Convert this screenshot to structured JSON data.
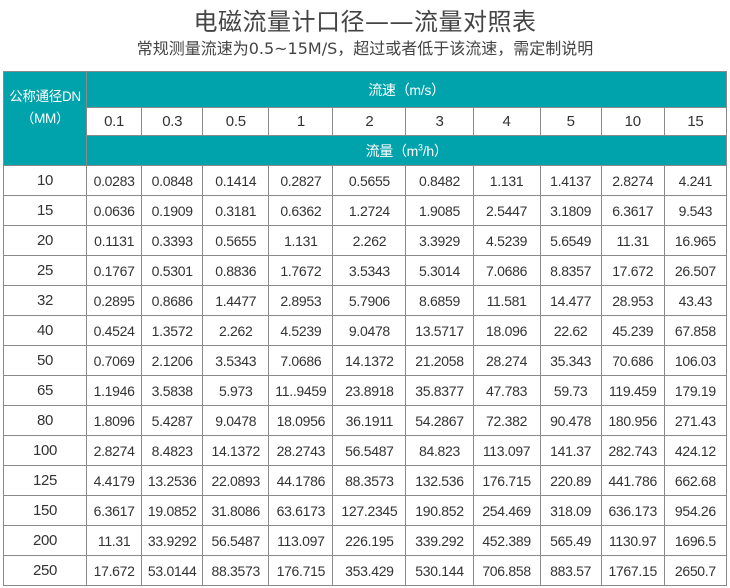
{
  "title": "电磁流量计口径——流量对照表",
  "subtitle": "常规测量流速为0.5~15M/S，超过或者低于该流速，需定制说明",
  "colors": {
    "header_bg": "#00a2ab",
    "header_text": "#ffffff",
    "border": "#8a8a8a"
  },
  "table": {
    "dn_header_line1": "公称通径DN",
    "dn_header_line2": "（MM）",
    "velocity_header": "流速（m/s）",
    "flow_header_prefix": "流量（m",
    "flow_header_sup": "3",
    "flow_header_suffix": "/h）",
    "velocities": [
      "0.1",
      "0.3",
      "0.5",
      "1",
      "2",
      "3",
      "4",
      "5",
      "10",
      "15"
    ],
    "rows": [
      {
        "dn": "10",
        "values": [
          "0.0283",
          "0.0848",
          "0.1414",
          "0.2827",
          "0.5655",
          "0.8482",
          "1.131",
          "1.4137",
          "2.8274",
          "4.241"
        ]
      },
      {
        "dn": "15",
        "values": [
          "0.0636",
          "0.1909",
          "0.3181",
          "0.6362",
          "1.2724",
          "1.9085",
          "2.5447",
          "3.1809",
          "6.3617",
          "9.543"
        ]
      },
      {
        "dn": "20",
        "values": [
          "0.1131",
          "0.3393",
          "0.5655",
          "1.131",
          "2.262",
          "3.3929",
          "4.5239",
          "5.6549",
          "11.31",
          "16.965"
        ]
      },
      {
        "dn": "25",
        "values": [
          "0.1767",
          "0.5301",
          "0.8836",
          "1.7672",
          "3.5343",
          "5.3014",
          "7.0686",
          "8.8357",
          "17.672",
          "26.507"
        ]
      },
      {
        "dn": "32",
        "values": [
          "0.2895",
          "0.8686",
          "1.4477",
          "2.8953",
          "5.7906",
          "8.6859",
          "11.581",
          "14.477",
          "28.953",
          "43.43"
        ]
      },
      {
        "dn": "40",
        "values": [
          "0.4524",
          "1.3572",
          "2.262",
          "4.5239",
          "9.0478",
          "13.5717",
          "18.096",
          "22.62",
          "45.239",
          "67.858"
        ]
      },
      {
        "dn": "50",
        "values": [
          "0.7069",
          "2.1206",
          "3.5343",
          "7.0686",
          "14.1372",
          "21.2058",
          "28.274",
          "35.343",
          "70.686",
          "106.03"
        ]
      },
      {
        "dn": "65",
        "values": [
          "1.1946",
          "3.5838",
          "5.973",
          "11..9459",
          "23.8918",
          "35.8377",
          "47.783",
          "59.73",
          "119.459",
          "179.19"
        ]
      },
      {
        "dn": "80",
        "values": [
          "1.8096",
          "5.4287",
          "9.0478",
          "18.0956",
          "36.1911",
          "54.2867",
          "72.382",
          "90.478",
          "180.956",
          "271.43"
        ]
      },
      {
        "dn": "100",
        "values": [
          "2.8274",
          "8.4823",
          "14.1372",
          "28.2743",
          "56.5487",
          "84.823",
          "113.097",
          "141.37",
          "282.743",
          "424.12"
        ]
      },
      {
        "dn": "125",
        "values": [
          "4.4179",
          "13.2536",
          "22.0893",
          "44.1786",
          "88.3573",
          "132.536",
          "176.715",
          "220.89",
          "441.786",
          "662.68"
        ]
      },
      {
        "dn": "150",
        "values": [
          "6.3617",
          "19.0852",
          "31.8086",
          "63.6173",
          "127.2345",
          "190.852",
          "254.469",
          "318.09",
          "636.173",
          "954.26"
        ]
      },
      {
        "dn": "200",
        "values": [
          "11.31",
          "33.9292",
          "56.5487",
          "113.097",
          "226.195",
          "339.292",
          "452.389",
          "565.49",
          "1130.97",
          "1696.5"
        ]
      },
      {
        "dn": "250",
        "values": [
          "17.672",
          "53.0144",
          "88.3573",
          "176.715",
          "353.429",
          "530.144",
          "706.858",
          "883.57",
          "1767.15",
          "2650.7"
        ]
      }
    ]
  }
}
